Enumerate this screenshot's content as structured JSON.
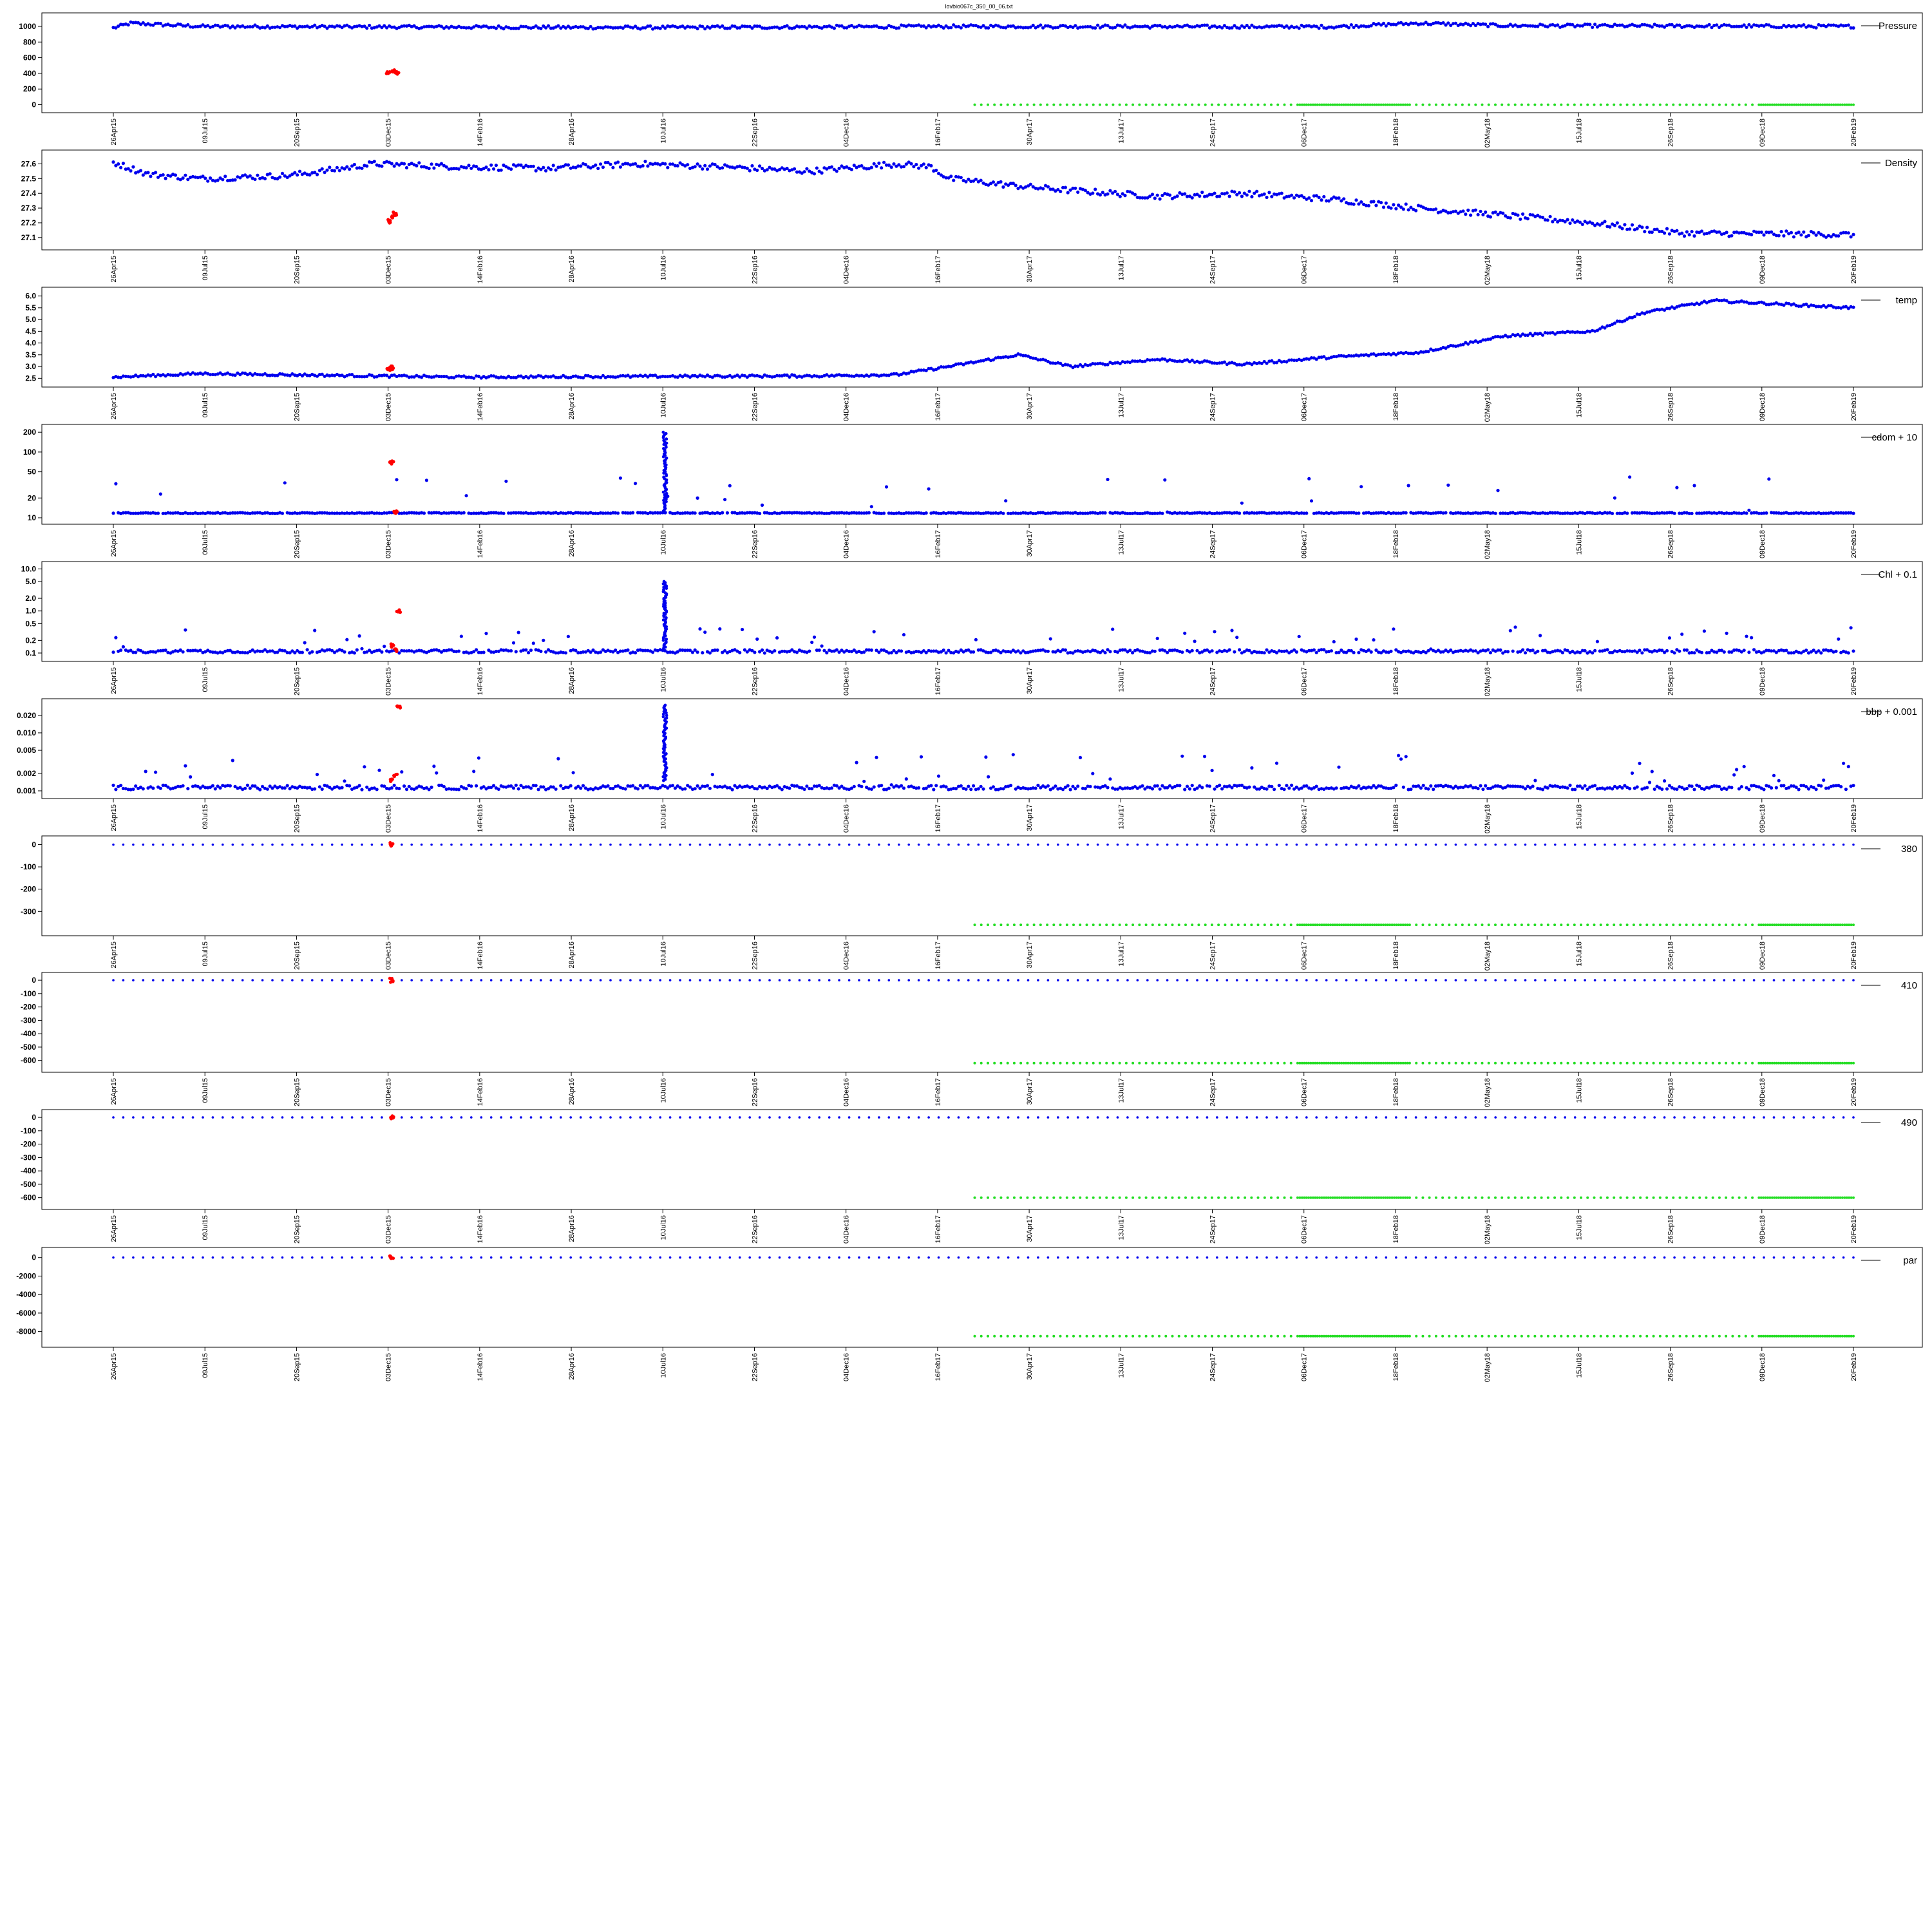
{
  "figure": {
    "title": "lovbio067c_350_00_06.txt"
  },
  "colors": {
    "main": "#0000ee",
    "flagged": "#ff0000",
    "qc": "#22dd22"
  },
  "chart_data": [
    {
      "type": "scatter",
      "legend": "Pressure",
      "ylim": [
        -20,
        1090
      ],
      "yticks": [
        0,
        200,
        400,
        600,
        800,
        1000
      ],
      "yscale": "linear",
      "main_trend": [
        [
          0,
          980
        ],
        [
          0.01,
          1040
        ],
        [
          0.05,
          1000
        ],
        [
          0.3,
          985
        ],
        [
          0.5,
          1000
        ],
        [
          0.7,
          995
        ],
        [
          0.75,
          1040
        ],
        [
          0.8,
          1010
        ],
        [
          1,
          1000
        ]
      ],
      "main_noise": 20,
      "flagged": [
        [
          0.158,
          400
        ],
        [
          0.161,
          420
        ],
        [
          0.163,
          410
        ]
      ],
      "qc_level": 0
    },
    {
      "type": "scatter",
      "legend": "Density",
      "ylim": [
        27.06,
        27.65
      ],
      "yticks": [
        27.1,
        27.2,
        27.3,
        27.4,
        27.5,
        27.6
      ],
      "yscale": "linear",
      "main_trend": [
        [
          0,
          27.61
        ],
        [
          0.02,
          27.53
        ],
        [
          0.05,
          27.5
        ],
        [
          0.1,
          27.52
        ],
        [
          0.12,
          27.55
        ],
        [
          0.15,
          27.6
        ],
        [
          0.2,
          27.58
        ],
        [
          0.25,
          27.57
        ],
        [
          0.3,
          27.6
        ],
        [
          0.35,
          27.58
        ],
        [
          0.4,
          27.55
        ],
        [
          0.45,
          27.6
        ],
        [
          0.47,
          27.58
        ],
        [
          0.48,
          27.5
        ],
        [
          0.52,
          27.45
        ],
        [
          0.55,
          27.42
        ],
        [
          0.6,
          27.38
        ],
        [
          0.65,
          27.4
        ],
        [
          0.7,
          27.36
        ],
        [
          0.75,
          27.3
        ],
        [
          0.8,
          27.25
        ],
        [
          0.85,
          27.2
        ],
        [
          0.9,
          27.13
        ],
        [
          1,
          27.12
        ]
      ],
      "main_noise": 0.02,
      "flagged": [
        [
          0.158,
          27.21
        ],
        [
          0.16,
          27.24
        ],
        [
          0.162,
          27.26
        ]
      ],
      "qc_level": null
    },
    {
      "type": "scatter",
      "legend": "temp",
      "ylim": [
        2.4,
        6.1
      ],
      "yticks": [
        2.5,
        3.0,
        3.5,
        4.0,
        4.5,
        5.0,
        5.5,
        6.0
      ],
      "yscale": "linear",
      "main_trend": [
        [
          0,
          2.55
        ],
        [
          0.05,
          2.7
        ],
        [
          0.1,
          2.65
        ],
        [
          0.2,
          2.55
        ],
        [
          0.3,
          2.58
        ],
        [
          0.4,
          2.6
        ],
        [
          0.45,
          2.65
        ],
        [
          0.48,
          3.0
        ],
        [
          0.52,
          3.5
        ],
        [
          0.55,
          3.0
        ],
        [
          0.6,
          3.3
        ],
        [
          0.65,
          3.1
        ],
        [
          0.7,
          3.4
        ],
        [
          0.75,
          3.6
        ],
        [
          0.8,
          4.3
        ],
        [
          0.85,
          4.5
        ],
        [
          0.88,
          5.3
        ],
        [
          0.92,
          5.8
        ],
        [
          1,
          5.5
        ]
      ],
      "main_noise": 0.05,
      "flagged": [
        [
          0.158,
          2.9
        ],
        [
          0.16,
          2.95
        ]
      ],
      "qc_level": null
    },
    {
      "type": "scatter",
      "legend": "cdom + 10",
      "ylim": [
        10,
        210
      ],
      "yticks": [
        10,
        20,
        50,
        100,
        200
      ],
      "yscale": "log",
      "main_trend": [
        [
          0,
          11.8
        ],
        [
          1,
          11.8
        ]
      ],
      "main_noise": 0.2,
      "spike_x": 0.317,
      "spike_range": [
        12,
        200
      ],
      "flagged": [
        [
          0.16,
          70
        ],
        [
          0.162,
          12
        ]
      ],
      "qc_level": null
    },
    {
      "type": "scatter",
      "legend": "Chl + 0.1",
      "ylim": [
        0.09,
        10.5
      ],
      "yticks": [
        0.1,
        0.2,
        0.5,
        1.0,
        2.0,
        5.0,
        10.0
      ],
      "yscale": "log",
      "main_trend": [
        [
          0,
          0.11
        ],
        [
          1,
          0.11
        ]
      ],
      "main_noise": 0.01,
      "spike_x": 0.317,
      "spike_range": [
        0.13,
        5
      ],
      "flagged": [
        [
          0.16,
          0.15
        ],
        [
          0.162,
          0.12
        ],
        [
          0.164,
          1.0
        ]
      ],
      "qc_level": null
    },
    {
      "type": "scatter",
      "legend": "bbp + 0.001",
      "ylim": [
        0.00095,
        0.03
      ],
      "yticks": [
        0.001,
        0.002,
        0.005,
        0.01,
        0.02
      ],
      "yscale": "log",
      "main_trend": [
        [
          0,
          0.00115
        ],
        [
          1,
          0.00115
        ]
      ],
      "main_noise": 0.0001,
      "spike_x": 0.317,
      "spike_range": [
        0.0015,
        0.03
      ],
      "flagged": [
        [
          0.16,
          0.0015
        ],
        [
          0.162,
          0.0018
        ],
        [
          0.164,
          0.028
        ]
      ],
      "qc_level": null
    },
    {
      "type": "scatter",
      "legend": "380",
      "ylim": [
        -380,
        10
      ],
      "yticks": [
        -300,
        -200,
        -100,
        0
      ],
      "yscale": "linear",
      "main_trend": [
        [
          0,
          0
        ],
        [
          1,
          0
        ]
      ],
      "main_noise": 0,
      "flagged": [
        [
          0.16,
          0
        ]
      ],
      "qc_level": -360
    },
    {
      "type": "scatter",
      "legend": "410",
      "ylim": [
        -640,
        10
      ],
      "yticks": [
        -600,
        -500,
        -400,
        -300,
        -200,
        -100,
        0
      ],
      "yscale": "linear",
      "main_trend": [
        [
          0,
          0
        ],
        [
          1,
          0
        ]
      ],
      "main_noise": 0,
      "flagged": [
        [
          0.16,
          0
        ]
      ],
      "qc_level": -620
    },
    {
      "type": "scatter",
      "legend": "490",
      "ylim": [
        -640,
        10
      ],
      "yticks": [
        -600,
        -500,
        -400,
        -300,
        -200,
        -100,
        0
      ],
      "yscale": "linear",
      "main_trend": [
        [
          0,
          0
        ],
        [
          1,
          0
        ]
      ],
      "main_noise": 0,
      "flagged": [
        [
          0.16,
          0
        ]
      ],
      "qc_level": -600
    },
    {
      "type": "scatter",
      "legend": "par",
      "ylim": [
        -9000,
        400
      ],
      "yticks": [
        -8000,
        -6000,
        -4000,
        -2000,
        0
      ],
      "yscale": "linear",
      "main_trend": [
        [
          0,
          0
        ],
        [
          1,
          0
        ]
      ],
      "main_noise": 0,
      "flagged": [
        [
          0.16,
          0
        ]
      ],
      "qc_level": -8500
    }
  ],
  "x_axis": {
    "ticks": [
      "26Apr15",
      "09Jul15",
      "20Sep15",
      "03Dec15",
      "14Feb16",
      "28Apr16",
      "10Jul16",
      "22Sep16",
      "04Dec16",
      "16Feb17",
      "30Apr17",
      "13Jul17",
      "24Sep17",
      "06Dec17",
      "18Feb18",
      "02May18",
      "15Jul18",
      "26Sep18",
      "09Dec18",
      "20Feb19"
    ]
  }
}
